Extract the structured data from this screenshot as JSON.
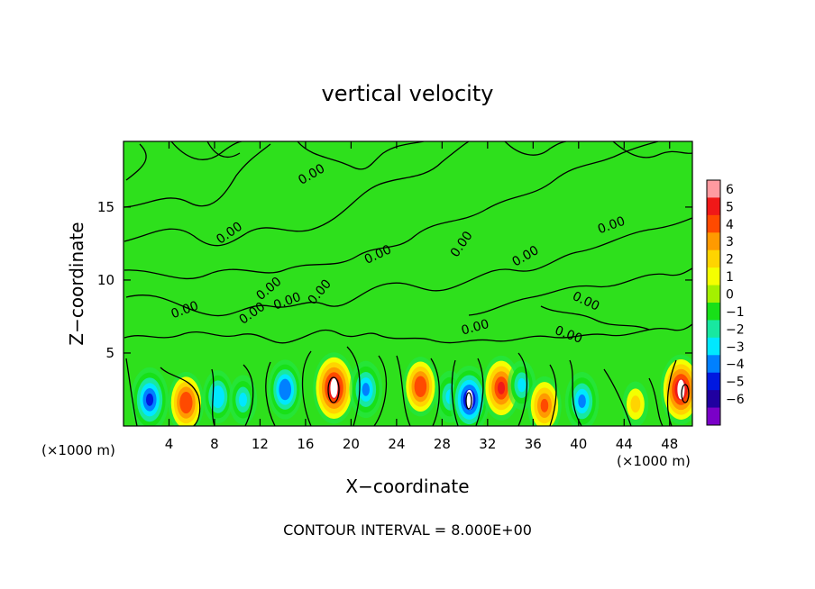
{
  "chart_data": {
    "type": "heatmap",
    "title": "vertical velocity",
    "xlabel": "X−coordinate",
    "ylabel": "Z−coordinate",
    "x_unit_left": "(×1000 m)",
    "x_unit_right": "(×1000 m)",
    "footer": "CONTOUR INTERVAL = 8.000E+00",
    "xlim": [
      0,
      50
    ],
    "ylim": [
      0,
      19.5
    ],
    "xticks": [
      "4",
      "8",
      "12",
      "16",
      "20",
      "24",
      "28",
      "32",
      "36",
      "40",
      "44",
      "48"
    ],
    "yticks": [
      "5",
      "10",
      "15"
    ],
    "contour_label": "0.00",
    "colorbar": {
      "ticks": [
        "6",
        "5",
        "4",
        "3",
        "2",
        "1",
        "0",
        "−1",
        "−2",
        "−3",
        "−4",
        "−5",
        "−6"
      ],
      "colors": [
        "#ff9aa0",
        "#f01818",
        "#ff4a00",
        "#ff9a00",
        "#ffd400",
        "#f4ff00",
        "#a4f000",
        "#18e018",
        "#18e8a0",
        "#00e8ff",
        "#0080ff",
        "#0018e0",
        "#2000a0",
        "#7a00c8"
      ]
    },
    "features": [
      {
        "x": 2.3,
        "z": 1.8,
        "value": -5.0
      },
      {
        "x": 5.5,
        "z": 1.6,
        "value": 4.5
      },
      {
        "x": 8.3,
        "z": 2.0,
        "value": -3.2
      },
      {
        "x": 10.5,
        "z": 1.8,
        "value": -2.6
      },
      {
        "x": 14.2,
        "z": 2.5,
        "value": -4.2
      },
      {
        "x": 18.5,
        "z": 2.6,
        "value": 6.0
      },
      {
        "x": 21.3,
        "z": 2.5,
        "value": -3.8
      },
      {
        "x": 26.1,
        "z": 2.7,
        "value": 4.2
      },
      {
        "x": 28.7,
        "z": 2.0,
        "value": -3.0
      },
      {
        "x": 30.4,
        "z": 1.8,
        "value": -5.5
      },
      {
        "x": 33.2,
        "z": 2.6,
        "value": 5.0
      },
      {
        "x": 35.0,
        "z": 2.8,
        "value": -2.6
      },
      {
        "x": 37.0,
        "z": 1.4,
        "value": 4.0
      },
      {
        "x": 40.3,
        "z": 1.7,
        "value": -4.0
      },
      {
        "x": 45.0,
        "z": 1.5,
        "value": 2.0
      },
      {
        "x": 49.0,
        "z": 2.5,
        "value": 5.8
      }
    ]
  }
}
